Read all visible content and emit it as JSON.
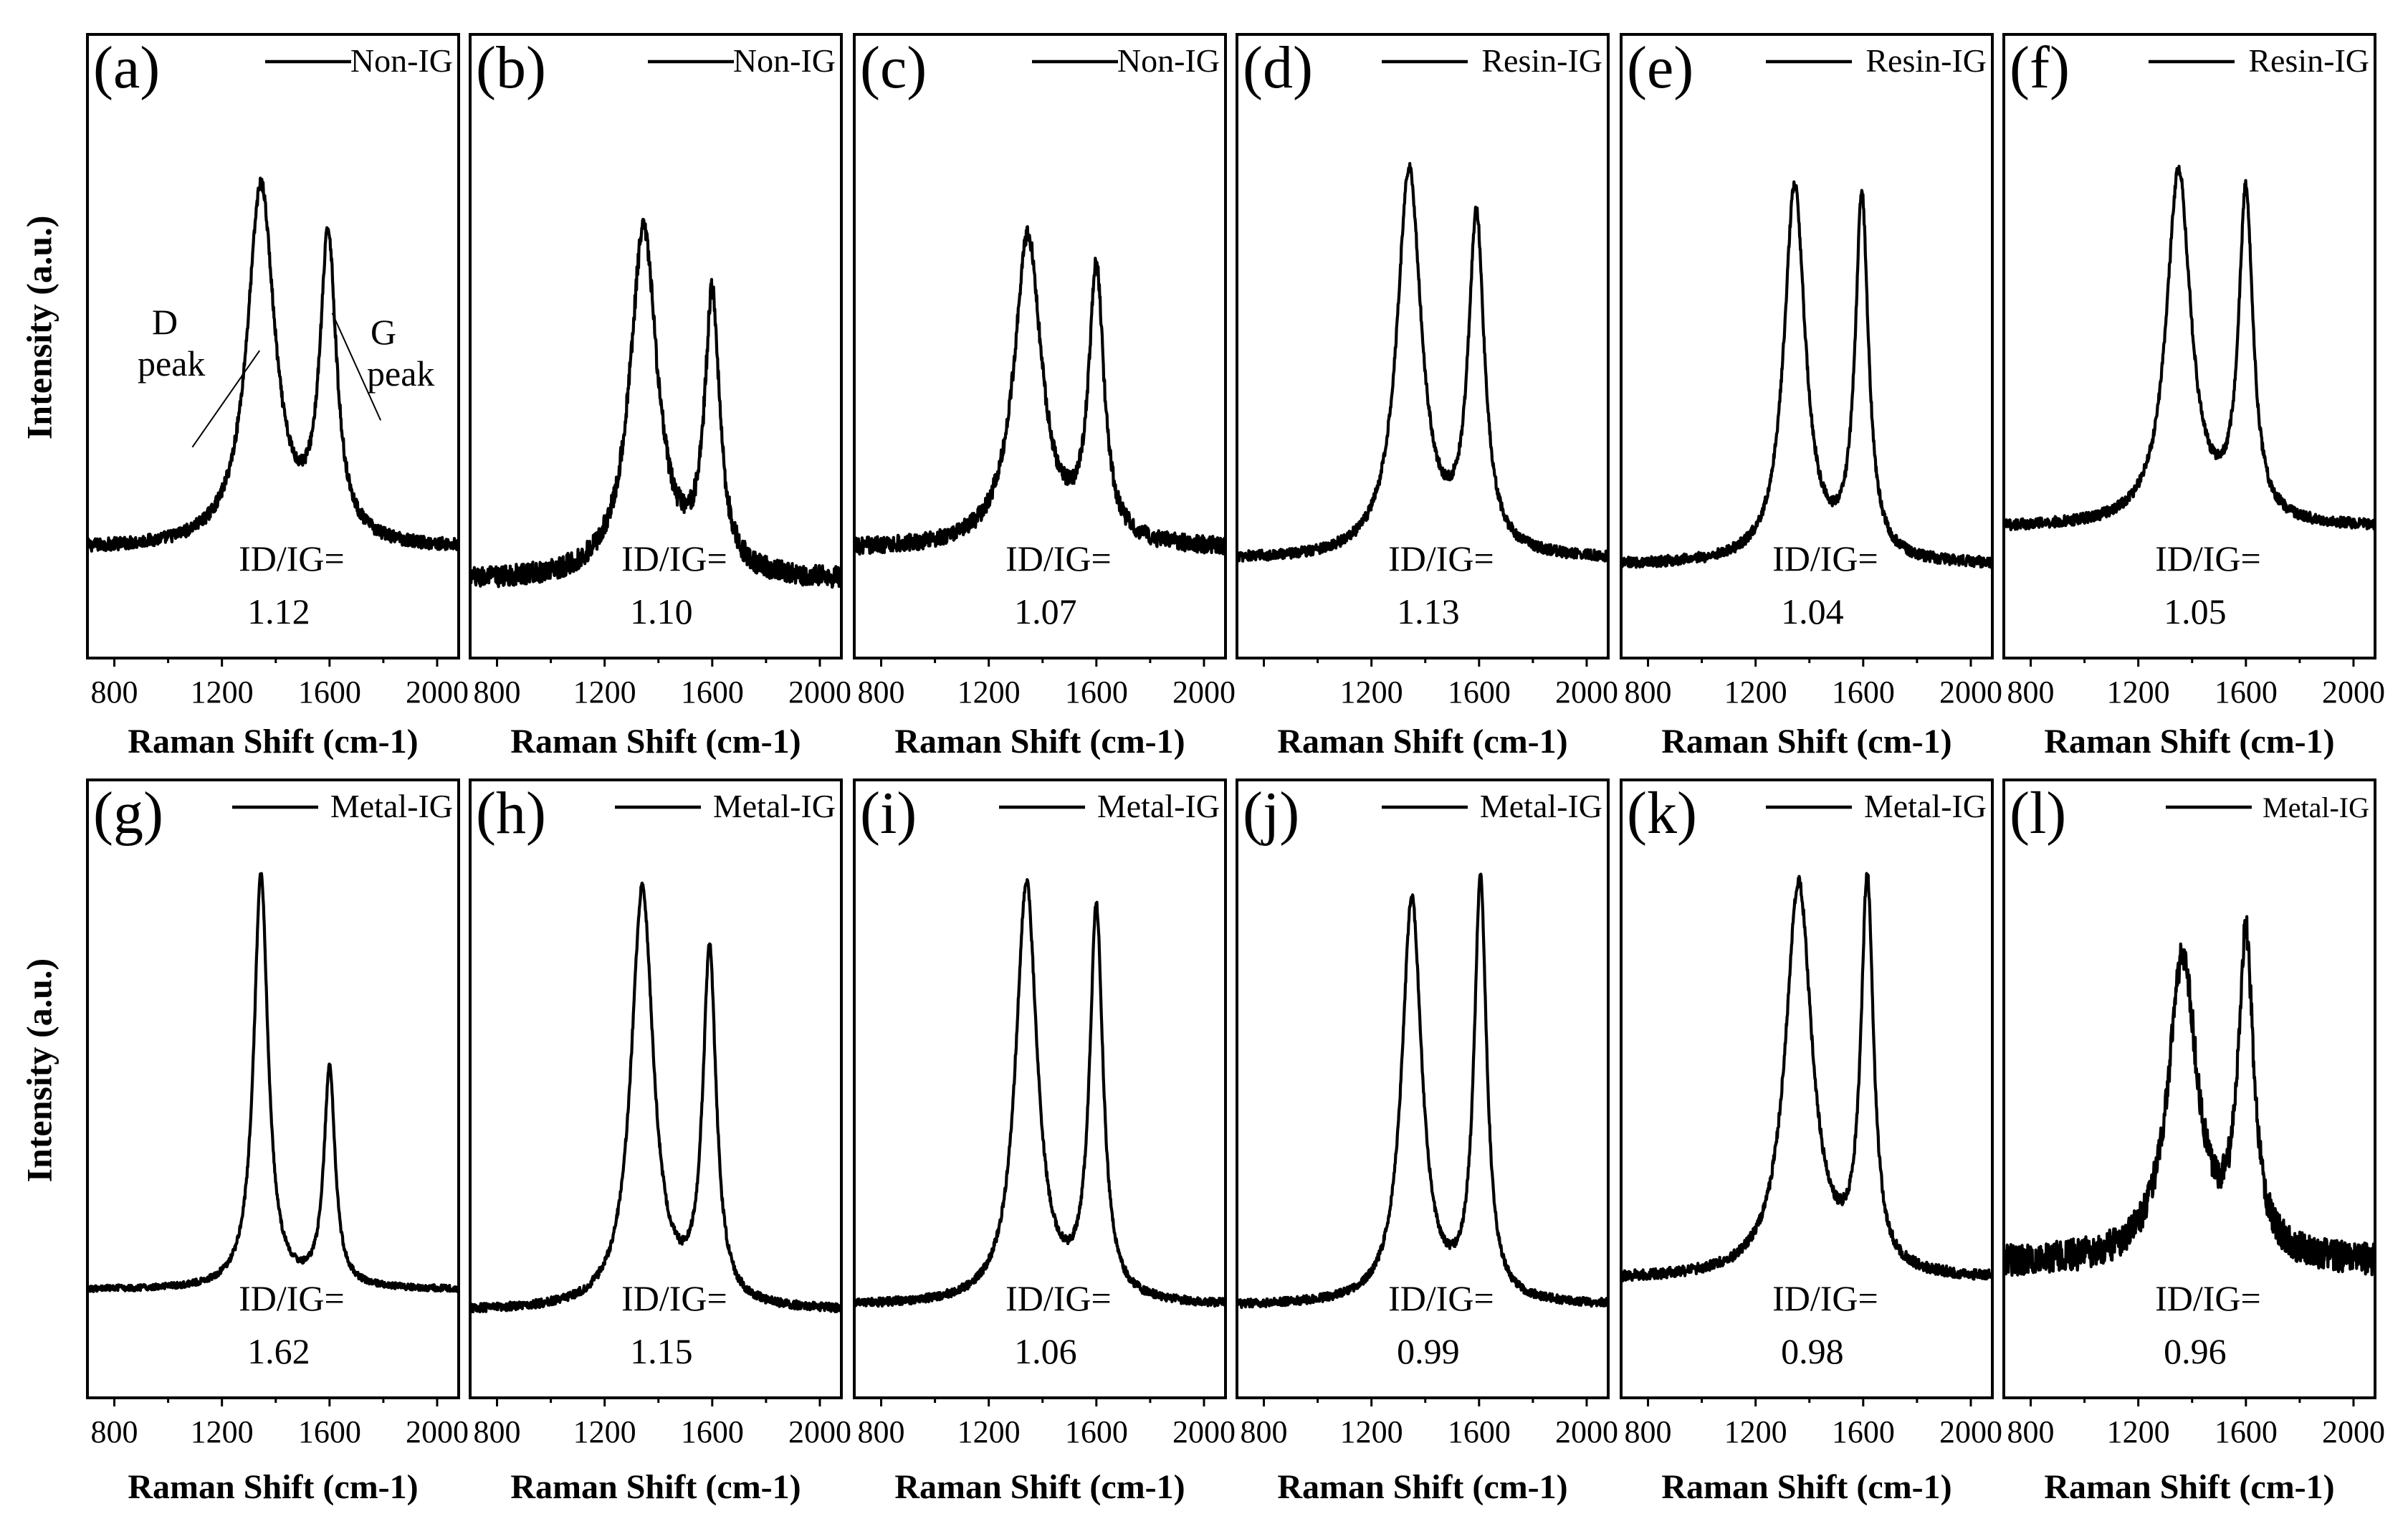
{
  "chart_data": {
    "type": "line",
    "y_axis_label": "Intensity (a.u.)",
    "x_axis_label": "Raman Shift (cm-1)",
    "x_axis_superscript_prefix": "cm",
    "x_axis_superscript": "-1",
    "xlim": [
      700,
      2080
    ],
    "xticks": [
      800,
      1200,
      1600,
      2000
    ],
    "peak_annotations": {
      "d_line1": "D",
      "d_line2": "peak",
      "g_line1": "G",
      "g_line2": "peak"
    },
    "ratio_prefix": "ID/IG=",
    "panels": [
      {
        "letter": "(a)",
        "legend": "Non-IG",
        "ratio": "1.12",
        "xticks_shown": [
          "800",
          "1200",
          "1600",
          "2000"
        ],
        "baseline": 0.18,
        "d_pos": 1345,
        "d_height": 0.85,
        "d_width": 62,
        "g_pos": 1595,
        "g_height": 0.74,
        "g_width": 37,
        "noise": 0.012
      },
      {
        "letter": "(b)",
        "legend": "Non-IG",
        "ratio": "1.10",
        "xticks_shown": [
          "800",
          "1200",
          "1600",
          "2000"
        ],
        "baseline": 0.12,
        "d_pos": 1345,
        "d_height": 0.77,
        "d_width": 62,
        "g_pos": 1600,
        "g_height": 0.63,
        "g_width": 34,
        "noise": 0.02
      },
      {
        "letter": "(c)",
        "legend": "Non-IG",
        "ratio": "1.07",
        "xticks_shown": [
          "800",
          "1200",
          "1600",
          "2000"
        ],
        "baseline": 0.18,
        "d_pos": 1345,
        "d_height": 0.76,
        "d_width": 62,
        "g_pos": 1600,
        "g_height": 0.68,
        "g_width": 34,
        "noise": 0.016
      },
      {
        "letter": "(d)",
        "legend": "Resin-IG",
        "ratio": "1.13",
        "xticks_shown": [
          "1200",
          "1600",
          "2000"
        ],
        "baseline": 0.16,
        "d_pos": 1340,
        "d_height": 0.88,
        "d_width": 55,
        "g_pos": 1590,
        "g_height": 0.78,
        "g_width": 36,
        "noise": 0.01
      },
      {
        "letter": "(e)",
        "legend": "Resin-IG",
        "ratio": "1.04",
        "xticks_shown": [
          "800",
          "1200",
          "1600",
          "2000"
        ],
        "baseline": 0.15,
        "d_pos": 1345,
        "d_height": 0.85,
        "d_width": 48,
        "g_pos": 1595,
        "g_height": 0.82,
        "g_width": 30,
        "noise": 0.01
      },
      {
        "letter": "(f)",
        "legend": "Resin-IG",
        "ratio": "1.05",
        "xticks_shown": [
          "800",
          "1200",
          "1600",
          "2000"
        ],
        "baseline": 0.22,
        "d_pos": 1350,
        "d_height": 0.88,
        "d_width": 55,
        "g_pos": 1600,
        "g_height": 0.83,
        "g_width": 32,
        "noise": 0.01
      },
      {
        "letter": "(g)",
        "legend": "Metal-IG",
        "ratio": "1.62",
        "xticks_shown": [
          "800",
          "1200",
          "1600",
          "2000"
        ],
        "baseline": 0.18,
        "d_pos": 1345,
        "d_height": 0.96,
        "d_width": 32,
        "g_pos": 1600,
        "g_height": 0.59,
        "g_width": 25,
        "noise": 0.006
      },
      {
        "letter": "(h)",
        "legend": "Metal-IG",
        "ratio": "1.15",
        "xticks_shown": [
          "800",
          "1200",
          "1600",
          "2000"
        ],
        "baseline": 0.14,
        "d_pos": 1340,
        "d_height": 0.93,
        "d_width": 50,
        "g_pos": 1590,
        "g_height": 0.8,
        "g_width": 30,
        "noise": 0.008
      },
      {
        "letter": "(i)",
        "legend": "Metal-IG",
        "ratio": "1.06",
        "xticks_shown": [
          "800",
          "1200",
          "1600",
          "2000"
        ],
        "baseline": 0.15,
        "d_pos": 1340,
        "d_height": 0.94,
        "d_width": 48,
        "g_pos": 1600,
        "g_height": 0.88,
        "g_width": 30,
        "noise": 0.008
      },
      {
        "letter": "(j)",
        "legend": "Metal-IG",
        "ratio": "0.99",
        "xticks_shown": [
          "800",
          "1200",
          "1600",
          "2000"
        ],
        "baseline": 0.15,
        "d_pos": 1350,
        "d_height": 0.91,
        "d_width": 45,
        "g_pos": 1605,
        "g_height": 0.94,
        "g_width": 28,
        "noise": 0.008
      },
      {
        "letter": "(k)",
        "legend": "Metal-IG",
        "ratio": "0.98",
        "xticks_shown": [
          "800",
          "1200",
          "1600",
          "2000"
        ],
        "baseline": 0.2,
        "d_pos": 1360,
        "d_height": 0.94,
        "d_width": 60,
        "g_pos": 1615,
        "g_height": 0.93,
        "g_width": 28,
        "noise": 0.01
      },
      {
        "letter": "(l)",
        "legend": "Metal-IG",
        "ratio": "0.96",
        "xticks_shown": [
          "800",
          "1200",
          "1600",
          "2000"
        ],
        "baseline": 0.23,
        "d_pos": 1365,
        "d_height": 0.8,
        "d_width": 65,
        "g_pos": 1600,
        "g_height": 0.82,
        "g_width": 35,
        "noise": 0.03
      }
    ]
  }
}
